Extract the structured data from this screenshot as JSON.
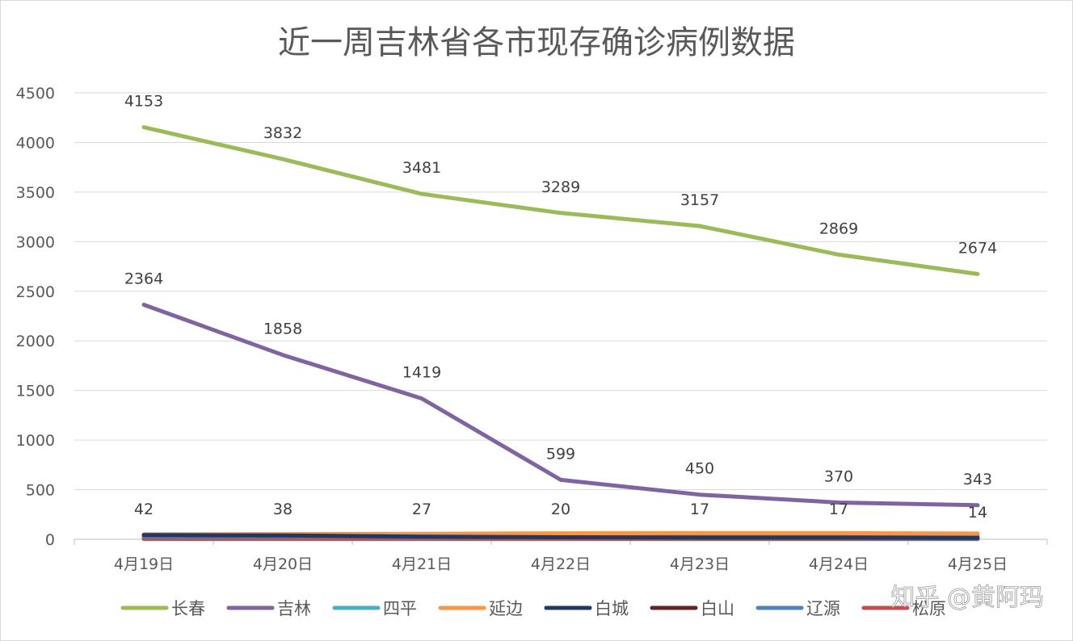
{
  "chart_data": {
    "type": "line",
    "title": "近一周吉林省各市现存确诊病例数据",
    "categories": [
      "4月19日",
      "4月20日",
      "4月21日",
      "4月22日",
      "4月23日",
      "4月24日",
      "4月25日"
    ],
    "ylim": [
      0,
      4500
    ],
    "yticks": [
      0,
      500,
      1000,
      1500,
      2000,
      2500,
      3000,
      3500,
      4000,
      4500
    ],
    "grid": true,
    "legend_position": "bottom",
    "series": [
      {
        "name": "长春",
        "color": "#9bbb59",
        "values": [
          4153,
          3832,
          3481,
          3289,
          3157,
          2869,
          2674
        ],
        "labels": [
          "4153",
          "3832",
          "3481",
          "3289",
          "3157",
          "2869",
          "2674"
        ]
      },
      {
        "name": "吉林",
        "color": "#8064a2",
        "values": [
          2364,
          1858,
          1419,
          599,
          450,
          370,
          343
        ],
        "labels": [
          "2364",
          "1858",
          "1419",
          "599",
          "450",
          "370",
          "343"
        ]
      },
      {
        "name": "四平",
        "color": "#4bacc6",
        "values": [
          2,
          2,
          2,
          2,
          2,
          2,
          2
        ]
      },
      {
        "name": "延边",
        "color": "#f79646",
        "values": [
          50,
          52,
          55,
          60,
          62,
          62,
          58
        ]
      },
      {
        "name": "白城",
        "color": "#1f3864",
        "values": [
          42,
          38,
          27,
          20,
          17,
          17,
          14
        ],
        "labels": [
          "42",
          "38",
          "27",
          "20",
          "17",
          "17",
          "14"
        ]
      },
      {
        "name": "白山",
        "color": "#632523",
        "values": [
          10,
          10,
          10,
          10,
          10,
          10,
          10
        ]
      },
      {
        "name": "辽源",
        "color": "#4f81bd",
        "values": [
          30,
          32,
          34,
          34,
          34,
          32,
          30
        ]
      },
      {
        "name": "松原",
        "color": "#c0504d",
        "values": [
          5,
          5,
          5,
          5,
          5,
          5,
          5
        ]
      }
    ]
  },
  "watermark": "知乎 @黄阿玛"
}
